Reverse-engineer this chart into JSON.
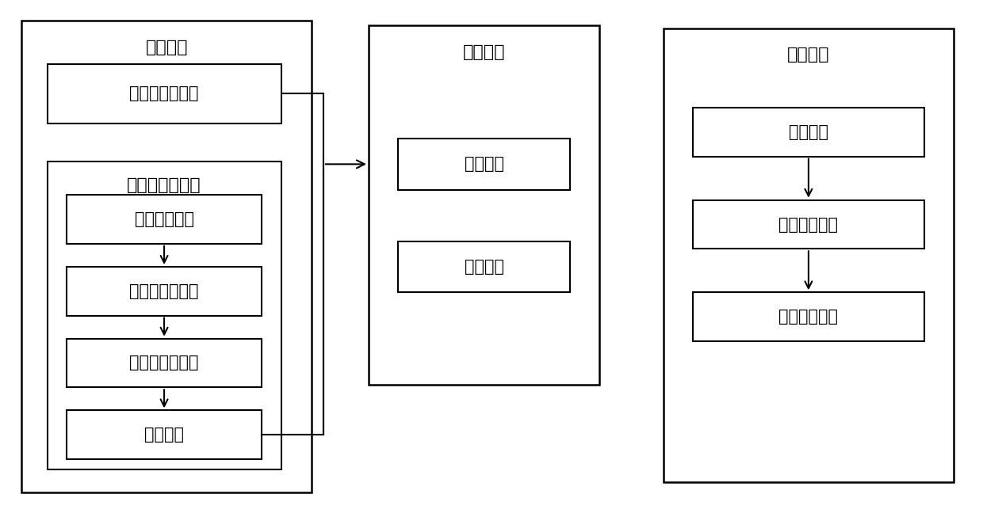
{
  "bg_color": "#ffffff",
  "text_color": "#000000",
  "encoding": {
    "outer": [
      0.022,
      0.04,
      0.295,
      0.92
    ],
    "title": "编码模块",
    "preamble": [
      0.048,
      0.76,
      0.238,
      0.115
    ],
    "preamble_label": "前导帧生成模块",
    "payload_outer": [
      0.048,
      0.085,
      0.238,
      0.6
    ],
    "payload_label": "载荷帧生成模块",
    "data_group": [
      0.068,
      0.525,
      0.198,
      0.095
    ],
    "data_group_label": "数据分组模块",
    "checksum": [
      0.068,
      0.385,
      0.198,
      0.095
    ],
    "checksum_label": "校验位生成模块",
    "frame_type": [
      0.068,
      0.245,
      0.198,
      0.095
    ],
    "frame_type_label": "帧类型生成模块",
    "combine": [
      0.068,
      0.105,
      0.198,
      0.095
    ],
    "combine_label": "组合模块"
  },
  "modulation": {
    "outer": [
      0.375,
      0.25,
      0.235,
      0.7
    ],
    "title": "调制模块",
    "marker": [
      0.405,
      0.63,
      0.175,
      0.1
    ],
    "marker_label": "标志单元",
    "payload": [
      0.405,
      0.43,
      0.175,
      0.1
    ],
    "payload_label": "载荷单元"
  },
  "demodulation": {
    "outer": [
      0.675,
      0.06,
      0.295,
      0.885
    ],
    "title": "解调模块",
    "scan": [
      0.705,
      0.695,
      0.235,
      0.095
    ],
    "scan_label": "扫描模块",
    "image_proc": [
      0.705,
      0.515,
      0.235,
      0.095
    ],
    "image_proc_label": "图像处理模块",
    "data_parse": [
      0.705,
      0.335,
      0.235,
      0.095
    ],
    "data_parse_label": "数据解析模块"
  },
  "font_size_title": 16,
  "font_size_box": 15,
  "lw_outer": 1.8,
  "lw_inner": 1.5
}
